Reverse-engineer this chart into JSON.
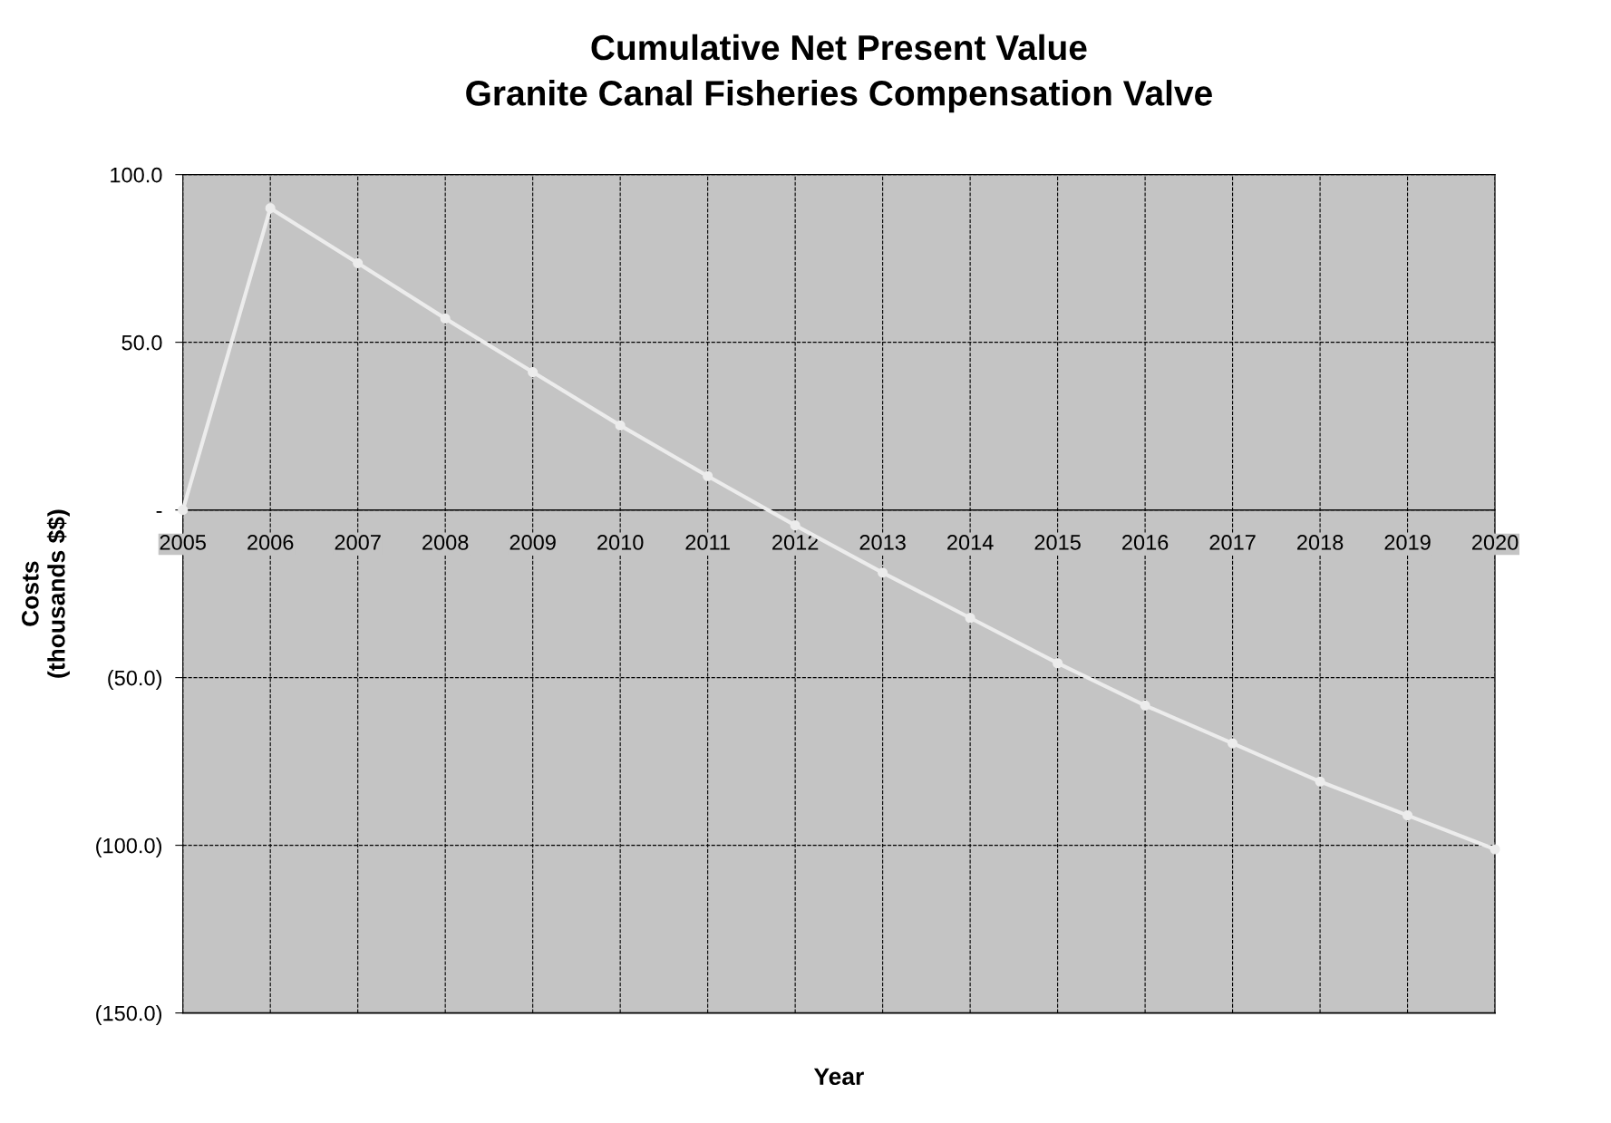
{
  "chart_data": {
    "type": "line",
    "title": "Cumulative Net Present Value\nGranite Canal Fisheries Compensation Valve",
    "xlabel": "Year",
    "ylabel": "Costs\n(thousands $$)",
    "x": [
      2005,
      2006,
      2007,
      2008,
      2009,
      2010,
      2011,
      2012,
      2013,
      2014,
      2015,
      2016,
      2017,
      2018,
      2019,
      2020
    ],
    "series": [
      {
        "color": "#ececec",
        "values": [
          0,
          90,
          73.6,
          57.1,
          41.1,
          25.2,
          10.1,
          -4.6,
          -18.7,
          -32.2,
          -45.7,
          -58.3,
          -69.6,
          -81.0,
          -91.1,
          -101.2
        ]
      }
    ],
    "xlim": [
      2005,
      2020
    ],
    "xticks": [
      2005,
      2006,
      2007,
      2008,
      2009,
      2010,
      2011,
      2012,
      2013,
      2014,
      2015,
      2016,
      2017,
      2018,
      2019,
      2020
    ],
    "ylim": [
      -150,
      100
    ],
    "yticks": [
      {
        "value": 100,
        "label": "100.0"
      },
      {
        "value": 50,
        "label": "50.0"
      },
      {
        "value": 0,
        "label": "-"
      },
      {
        "value": -50,
        "label": "(50.0)"
      },
      {
        "value": -100,
        "label": "(100.0)"
      },
      {
        "value": -150,
        "label": "(150.0)"
      }
    ],
    "grid": true,
    "marker": "circle",
    "line_style": "solid",
    "legend": false
  }
}
